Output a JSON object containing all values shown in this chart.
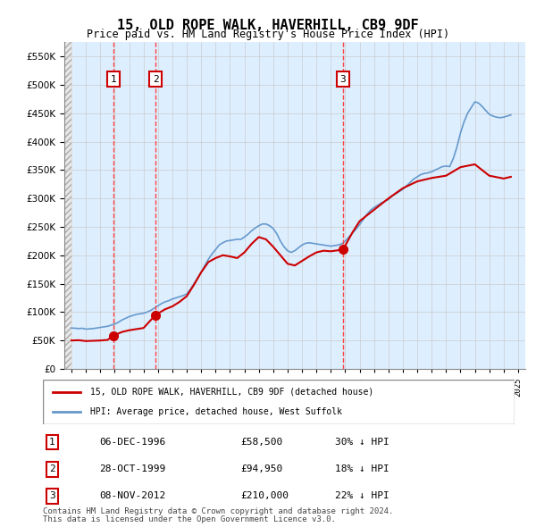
{
  "title": "15, OLD ROPE WALK, HAVERHILL, CB9 9DF",
  "subtitle": "Price paid vs. HM Land Registry's House Price Index (HPI)",
  "legend_entry1": "15, OLD ROPE WALK, HAVERHILL, CB9 9DF (detached house)",
  "legend_entry2": "HPI: Average price, detached house, West Suffolk",
  "footer1": "Contains HM Land Registry data © Crown copyright and database right 2024.",
  "footer2": "This data is licensed under the Open Government Licence v3.0.",
  "transactions": [
    {
      "label": "1",
      "date": "06-DEC-1996",
      "price": 58500,
      "pct": "30%",
      "dir": "↓",
      "x": 1996.92
    },
    {
      "label": "2",
      "date": "28-OCT-1999",
      "price": 94950,
      "pct": "18%",
      "dir": "↓",
      "x": 1999.83
    },
    {
      "label": "3",
      "date": "08-NOV-2012",
      "price": 210000,
      "pct": "22%",
      "dir": "↓",
      "x": 2012.85
    }
  ],
  "hpi_color": "#6699cc",
  "price_color": "#cc0000",
  "hatch_color": "#cccccc",
  "grid_color": "#cccccc",
  "vline_color": "#ff4444",
  "box_color": "#cc0000",
  "ylim": [
    0,
    575000
  ],
  "xlim_start": 1993.5,
  "xlim_end": 2025.5,
  "hpi_data": {
    "years": [
      1994,
      1994.25,
      1994.5,
      1994.75,
      1995,
      1995.25,
      1995.5,
      1995.75,
      1996,
      1996.25,
      1996.5,
      1996.75,
      1997,
      1997.25,
      1997.5,
      1997.75,
      1998,
      1998.25,
      1998.5,
      1998.75,
      1999,
      1999.25,
      1999.5,
      1999.75,
      2000,
      2000.25,
      2000.5,
      2000.75,
      2001,
      2001.25,
      2001.5,
      2001.75,
      2002,
      2002.25,
      2002.5,
      2002.75,
      2003,
      2003.25,
      2003.5,
      2003.75,
      2004,
      2004.25,
      2004.5,
      2004.75,
      2005,
      2005.25,
      2005.5,
      2005.75,
      2006,
      2006.25,
      2006.5,
      2006.75,
      2007,
      2007.25,
      2007.5,
      2007.75,
      2008,
      2008.25,
      2008.5,
      2008.75,
      2009,
      2009.25,
      2009.5,
      2009.75,
      2010,
      2010.25,
      2010.5,
      2010.75,
      2011,
      2011.25,
      2011.5,
      2011.75,
      2012,
      2012.25,
      2012.5,
      2012.75,
      2013,
      2013.25,
      2013.5,
      2013.75,
      2014,
      2014.25,
      2014.5,
      2014.75,
      2015,
      2015.25,
      2015.5,
      2015.75,
      2016,
      2016.25,
      2016.5,
      2016.75,
      2017,
      2017.25,
      2017.5,
      2017.75,
      2018,
      2018.25,
      2018.5,
      2018.75,
      2019,
      2019.25,
      2019.5,
      2019.75,
      2020,
      2020.25,
      2020.5,
      2020.75,
      2021,
      2021.25,
      2021.5,
      2021.75,
      2022,
      2022.25,
      2022.5,
      2022.75,
      2023,
      2023.25,
      2023.5,
      2023.75,
      2024,
      2024.25,
      2024.5
    ],
    "values": [
      72000,
      71500,
      71000,
      71500,
      70000,
      70500,
      71000,
      72000,
      73000,
      74000,
      75000,
      77000,
      79000,
      82000,
      86000,
      89000,
      92000,
      94000,
      96000,
      97000,
      98000,
      100000,
      103000,
      107000,
      111000,
      115000,
      118000,
      120000,
      123000,
      125000,
      127000,
      129000,
      132000,
      140000,
      150000,
      160000,
      170000,
      182000,
      193000,
      202000,
      210000,
      218000,
      222000,
      225000,
      226000,
      227000,
      228000,
      228000,
      232000,
      237000,
      243000,
      248000,
      252000,
      255000,
      255000,
      252000,
      247000,
      238000,
      225000,
      215000,
      208000,
      205000,
      208000,
      213000,
      218000,
      221000,
      222000,
      221000,
      220000,
      219000,
      218000,
      217000,
      216000,
      217000,
      218000,
      220000,
      225000,
      232000,
      239000,
      246000,
      254000,
      263000,
      272000,
      279000,
      284000,
      288000,
      292000,
      295000,
      298000,
      304000,
      308000,
      312000,
      316000,
      322000,
      328000,
      334000,
      338000,
      342000,
      344000,
      345000,
      347000,
      350000,
      353000,
      356000,
      357000,
      356000,
      370000,
      390000,
      415000,
      435000,
      450000,
      460000,
      470000,
      468000,
      462000,
      455000,
      448000,
      445000,
      443000,
      442000,
      443000,
      445000,
      447000
    ]
  },
  "price_line_data": {
    "years": [
      1994,
      1994.5,
      1995,
      1995.5,
      1996,
      1996.5,
      1996.92,
      1997.5,
      1998,
      1998.5,
      1999,
      1999.83,
      2000.5,
      2001,
      2001.5,
      2002,
      2002.5,
      2003,
      2003.5,
      2004,
      2004.5,
      2005,
      2005.5,
      2006,
      2006.5,
      2007,
      2007.5,
      2008,
      2008.5,
      2009,
      2009.5,
      2010,
      2010.5,
      2011,
      2011.5,
      2012,
      2012.85,
      2013.5,
      2014,
      2015,
      2016,
      2017,
      2018,
      2019,
      2020,
      2021,
      2022,
      2023,
      2024,
      2024.5
    ],
    "values": [
      50000,
      50500,
      49000,
      49500,
      50000,
      51000,
      58500,
      65000,
      68000,
      70000,
      72000,
      94950,
      105000,
      110000,
      118000,
      128000,
      148000,
      170000,
      188000,
      195000,
      200000,
      198000,
      195000,
      205000,
      220000,
      232000,
      228000,
      215000,
      200000,
      185000,
      182000,
      190000,
      198000,
      205000,
      208000,
      207000,
      210000,
      240000,
      260000,
      280000,
      300000,
      318000,
      330000,
      336000,
      340000,
      355000,
      360000,
      340000,
      335000,
      338000
    ]
  }
}
